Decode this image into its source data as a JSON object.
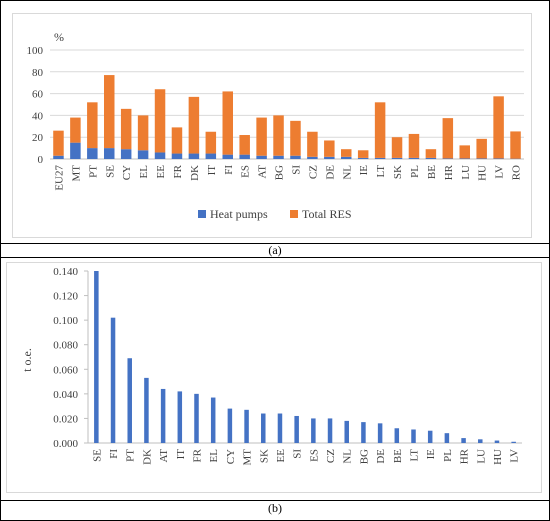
{
  "colors": {
    "heat_pumps": "#4472C4",
    "total_res": "#ED7D31",
    "grid": "#d9d9d9",
    "axis": "#bfbfbf",
    "text": "#404040",
    "frame": "#000000"
  },
  "captions": {
    "panel_a": "(a)",
    "panel_b": "(b)"
  },
  "chart_data": [
    {
      "type": "bar",
      "stacked": true,
      "unit_label": "%",
      "ylim": [
        0,
        100
      ],
      "yticks": [
        0,
        20,
        40,
        60,
        80,
        100
      ],
      "grid": true,
      "legend_position": "bottom",
      "categories": [
        "EU27",
        "MT",
        "PT",
        "SE",
        "CY",
        "EL",
        "EE",
        "FR",
        "DK",
        "IT",
        "FI",
        "ES",
        "AT",
        "BG",
        "SI",
        "CZ",
        "DE",
        "NL",
        "IE",
        "LT",
        "SK",
        "PL",
        "BE",
        "HR",
        "LU",
        "HU",
        "LV",
        "RO"
      ],
      "series": [
        {
          "name": "Heat pumps",
          "values": [
            3,
            15,
            10,
            10,
            9,
            8,
            6,
            5,
            5,
            5,
            4,
            4,
            3,
            3,
            3,
            2,
            2,
            2,
            1,
            1,
            1,
            1,
            1,
            0.5,
            0.5,
            0.5,
            0.5,
            0.3
          ]
        },
        {
          "name": "Total RES",
          "values": [
            23,
            23,
            42,
            67,
            37,
            32,
            58,
            24,
            52,
            20,
            58,
            18,
            35,
            37,
            32,
            23,
            15,
            7,
            7,
            51,
            19,
            22,
            8,
            37,
            12,
            18,
            57,
            25
          ]
        }
      ]
    },
    {
      "type": "bar",
      "ylabel": "t o.e.",
      "ylim": [
        0,
        0.14
      ],
      "yticks": [
        "0.000",
        "0.020",
        "0.040",
        "0.060",
        "0.080",
        "0.100",
        "0.120",
        "0.140"
      ],
      "grid": false,
      "categories": [
        "SE",
        "FI",
        "PT",
        "DK",
        "AT",
        "IT",
        "FR",
        "EL",
        "CY",
        "MT",
        "SK",
        "EE",
        "SI",
        "ES",
        "CZ",
        "NL",
        "BG",
        "DE",
        "BE",
        "LT",
        "IE",
        "PL",
        "HR",
        "LU",
        "HU",
        "LV"
      ],
      "values": [
        0.14,
        0.102,
        0.069,
        0.053,
        0.044,
        0.042,
        0.04,
        0.037,
        0.028,
        0.027,
        0.024,
        0.024,
        0.022,
        0.02,
        0.02,
        0.018,
        0.017,
        0.016,
        0.012,
        0.011,
        0.01,
        0.008,
        0.004,
        0.003,
        0.002,
        0.001
      ]
    }
  ]
}
